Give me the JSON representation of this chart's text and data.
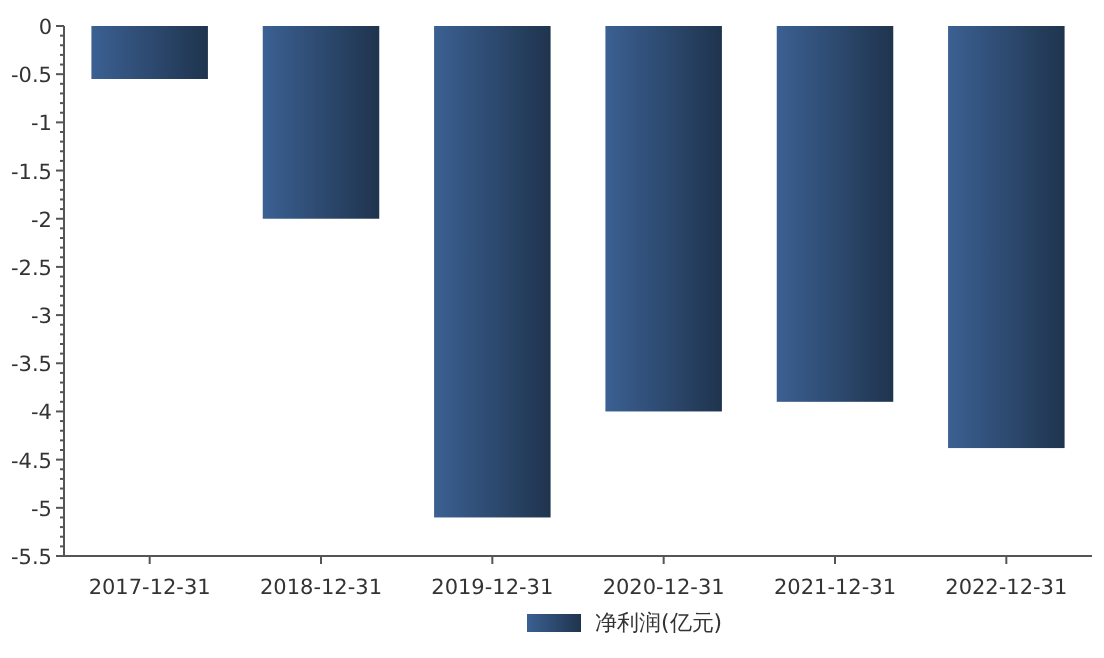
{
  "chart_data": {
    "type": "bar",
    "categories": [
      "2017-12-31",
      "2018-12-31",
      "2019-12-31",
      "2020-12-31",
      "2021-12-31",
      "2022-12-31"
    ],
    "series": [
      {
        "name": "净利润(亿元)",
        "color": "#2d4a70",
        "values": [
          -0.55,
          -2.0,
          -5.1,
          -4.0,
          -3.9,
          -4.38
        ]
      }
    ],
    "ylim": [
      -5.5,
      0
    ],
    "yticks": [
      0,
      -0.5,
      -1,
      -1.5,
      -2,
      -2.5,
      -3,
      -3.5,
      -4,
      -4.5,
      -5,
      -5.5
    ],
    "grid": false,
    "legend": "bottom"
  }
}
